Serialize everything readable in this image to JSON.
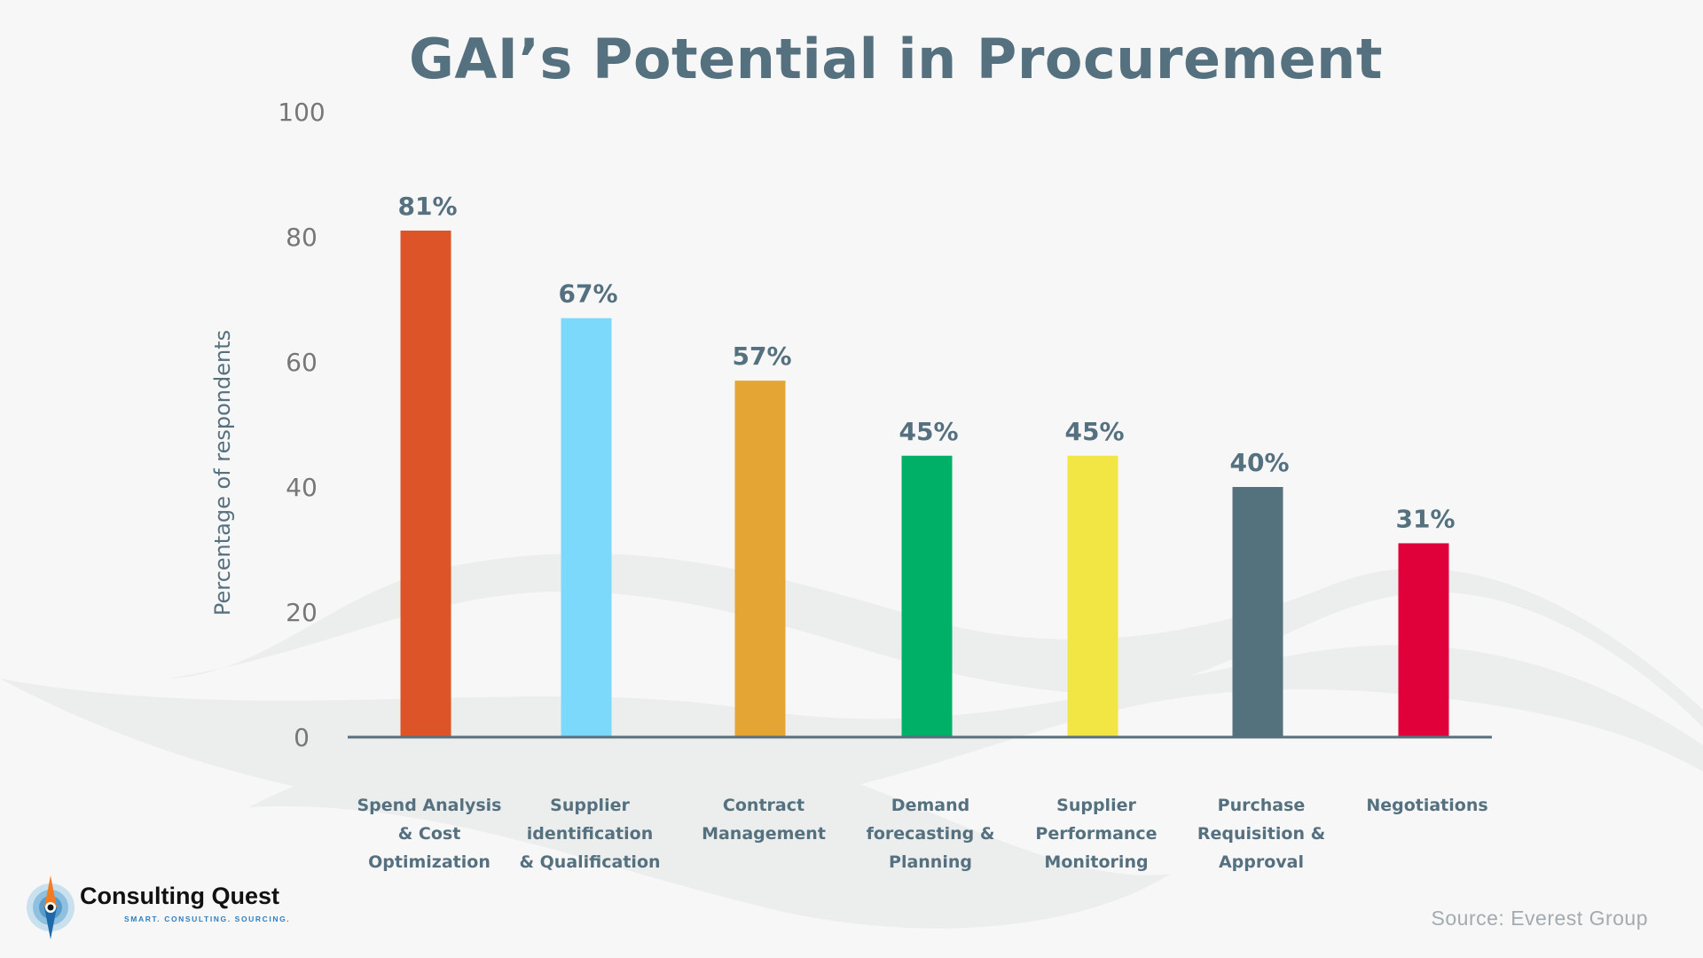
{
  "chart_data": {
    "type": "bar",
    "title": "GAI’s Potential in Procurement",
    "ylabel": "Percentage of respondents",
    "xlabel": "",
    "ylim": [
      0,
      100
    ],
    "yticks": [
      0,
      20,
      40,
      60,
      80,
      100
    ],
    "grid": false,
    "categories": [
      [
        "Spend Analysis",
        "& Cost",
        "Optimization"
      ],
      [
        "Supplier",
        "identification",
        "& Qualification"
      ],
      [
        "Contract",
        "Management"
      ],
      [
        "Demand",
        "forecasting &",
        "Planning"
      ],
      [
        "Supplier",
        "Performance",
        "Monitoring"
      ],
      [
        "Purchase",
        "Requisition &",
        "Approval"
      ],
      [
        "Negotiations"
      ]
    ],
    "values": [
      81,
      67,
      57,
      45,
      45,
      40,
      31
    ],
    "data_labels": [
      "81%",
      "67%",
      "57%",
      "45%",
      "45%",
      "40%",
      "31%"
    ],
    "colors": [
      "#DC5428",
      "#7DD9FB",
      "#E4A535",
      "#00B066",
      "#F2E645",
      "#54717E",
      "#E0003A"
    ]
  },
  "source": "Source: Everest Group",
  "logo": {
    "name": "Consulting Quest",
    "tagline": "SMART. CONSULTING. SOURCING."
  },
  "colors": {
    "text": "#557180",
    "axis": "#557180",
    "background": "#f7f7f7"
  }
}
